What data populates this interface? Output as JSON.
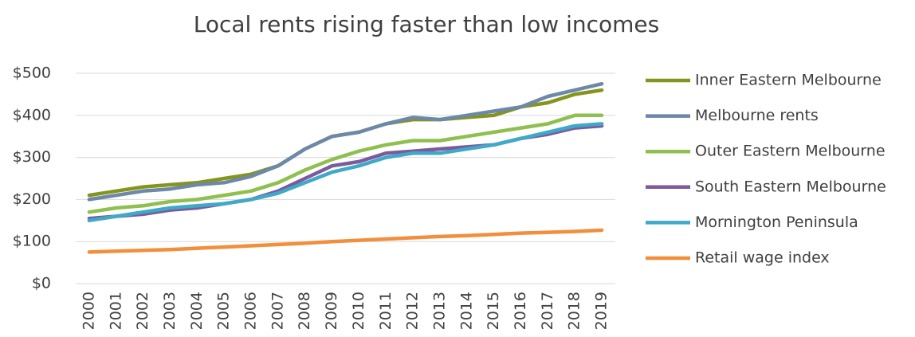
{
  "chart_data": {
    "type": "line",
    "title": "Local rents rising faster than low incomes",
    "categories": [
      "2000",
      "2001",
      "2002",
      "2003",
      "2004",
      "2005",
      "2006",
      "2007",
      "2008",
      "2009",
      "2010",
      "2011",
      "2012",
      "2013",
      "2014",
      "2015",
      "2016",
      "2017",
      "2018",
      "2019"
    ],
    "series": [
      {
        "name": "Inner Eastern Melbourne",
        "color": "#84951e",
        "values": [
          210,
          220,
          230,
          235,
          240,
          250,
          260,
          280,
          320,
          350,
          360,
          380,
          390,
          390,
          395,
          400,
          420,
          430,
          450,
          460
        ]
      },
      {
        "name": "Melbourne rents",
        "color": "#6d88a8",
        "values": [
          200,
          210,
          220,
          225,
          235,
          240,
          255,
          280,
          320,
          350,
          360,
          380,
          395,
          390,
          400,
          410,
          420,
          445,
          460,
          475
        ]
      },
      {
        "name": "Outer Eastern Melbourne",
        "color": "#8fc04f",
        "values": [
          170,
          180,
          185,
          195,
          200,
          210,
          220,
          240,
          270,
          295,
          315,
          330,
          340,
          340,
          350,
          360,
          370,
          380,
          400,
          400
        ]
      },
      {
        "name": "South Eastern Melbourne",
        "color": "#7b5a9e",
        "values": [
          155,
          160,
          165,
          175,
          180,
          190,
          200,
          220,
          250,
          280,
          290,
          310,
          315,
          320,
          325,
          330,
          345,
          355,
          370,
          375
        ]
      },
      {
        "name": "Mornington Peninsula",
        "color": "#3fa9c8",
        "values": [
          150,
          160,
          170,
          180,
          185,
          190,
          200,
          215,
          240,
          265,
          280,
          300,
          310,
          310,
          320,
          330,
          345,
          360,
          375,
          380
        ]
      },
      {
        "name": "Retail wage index",
        "color": "#f28e3c",
        "values": [
          75,
          77,
          79,
          81,
          84,
          87,
          90,
          93,
          96,
          100,
          103,
          106,
          109,
          112,
          114,
          117,
          120,
          122,
          124,
          127
        ]
      }
    ],
    "ylim": [
      0,
      500
    ],
    "yticks": [
      {
        "value": 0,
        "label": "$0"
      },
      {
        "value": 100,
        "label": "$100"
      },
      {
        "value": 200,
        "label": "$200"
      },
      {
        "value": 300,
        "label": "$300"
      },
      {
        "value": 400,
        "label": "$400"
      },
      {
        "value": 500,
        "label": "$500"
      }
    ],
    "grid": true,
    "legend": "right"
  }
}
